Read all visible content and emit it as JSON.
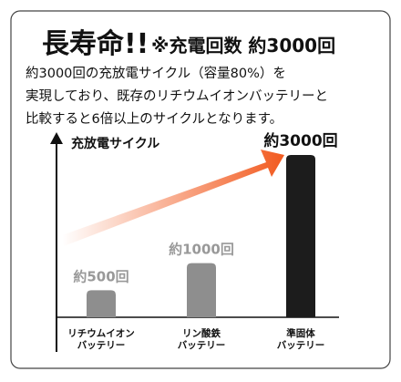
{
  "header": {
    "title": "長寿命!!",
    "subtitle": "※充電回数 約3000回"
  },
  "description": [
    "約3000回の充放電サイクル（容量80%）を",
    "実現しており、既存のリチウムイオンバッテリーと",
    "比較すると6倍以上のサイクルとなります。"
  ],
  "chart_data": {
    "type": "bar",
    "y_label": "充放電サイクル",
    "categories": [
      [
        "リチウムイオン",
        "バッテリー"
      ],
      [
        "リン酸鉄",
        "バッテリー"
      ],
      [
        "準固体",
        "バッテリー"
      ]
    ],
    "values": [
      500,
      1000,
      3000
    ],
    "value_labels": [
      "約500回",
      "約1000回",
      "約3000回"
    ],
    "colors": [
      "#8e8e8e",
      "#8e8e8e",
      "#1c1c1c"
    ],
    "ylim": [
      0,
      3000
    ]
  }
}
